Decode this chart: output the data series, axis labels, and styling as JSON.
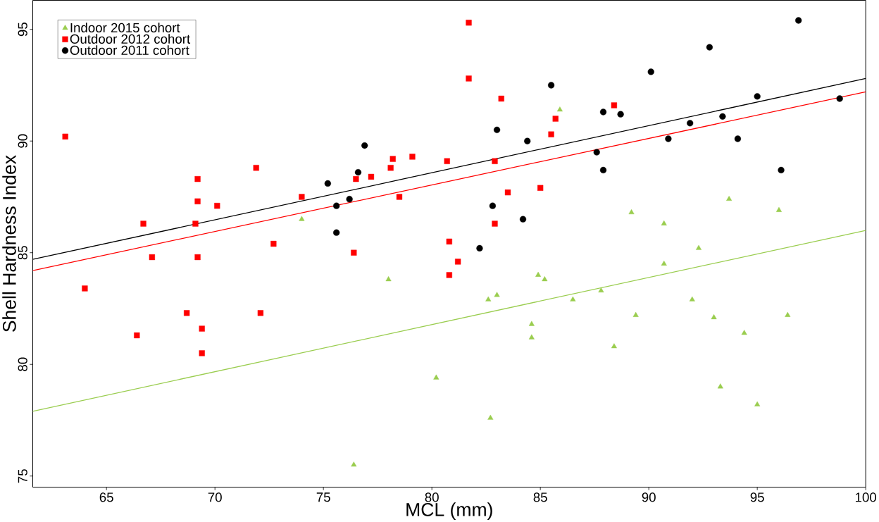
{
  "chart_data": {
    "type": "scatter",
    "xlabel": "MCL (mm)",
    "ylabel": "Shell Hardness Index",
    "xlim": [
      61.6,
      100
    ],
    "ylim": [
      74.5,
      96.3
    ],
    "xticks": [
      65,
      70,
      75,
      80,
      85,
      90,
      95,
      100
    ],
    "yticks": [
      75,
      80,
      85,
      90,
      95
    ],
    "grid": false,
    "legend": "top left",
    "series": [
      {
        "name": "Indoor 2015 cohort",
        "color": "#9acd4f",
        "marker": "triangle",
        "x": [
          74.0,
          78.0,
          80.2,
          76.4,
          82.6,
          83.0,
          82.7,
          84.6,
          84.6,
          84.9,
          85.2,
          85.9,
          86.5,
          87.8,
          88.4,
          89.2,
          89.4,
          90.7,
          90.7,
          92.0,
          92.3,
          93.0,
          93.3,
          93.7,
          94.4,
          95.0,
          96.0,
          96.4
        ],
        "values": [
          86.5,
          83.8,
          79.4,
          75.5,
          82.9,
          83.1,
          77.6,
          81.8,
          81.2,
          84.0,
          83.8,
          91.4,
          82.9,
          83.3,
          80.8,
          86.8,
          82.2,
          86.3,
          84.5,
          82.9,
          85.2,
          82.1,
          79.0,
          87.4,
          81.4,
          78.2,
          86.9,
          82.2
        ]
      },
      {
        "name": "Outdoor 2012 cohort",
        "color": "#ff0000",
        "marker": "square",
        "x": [
          63.1,
          64.0,
          66.7,
          66.4,
          67.1,
          68.7,
          69.2,
          69.2,
          69.1,
          69.2,
          69.4,
          69.4,
          70.1,
          71.9,
          72.7,
          72.1,
          74.0,
          76.5,
          76.4,
          77.2,
          78.1,
          78.2,
          79.1,
          78.5,
          80.7,
          80.8,
          80.8,
          81.2,
          81.7,
          81.7,
          83.2,
          82.9,
          82.9,
          83.5,
          85.0,
          85.5,
          85.7,
          88.4
        ],
        "values": [
          90.2,
          83.4,
          86.3,
          81.3,
          84.8,
          82.3,
          88.3,
          87.3,
          86.3,
          84.8,
          81.6,
          80.5,
          87.1,
          88.8,
          85.4,
          82.3,
          87.5,
          88.3,
          85.0,
          88.4,
          88.8,
          89.2,
          89.3,
          87.5,
          89.1,
          85.5,
          84.0,
          84.6,
          95.3,
          92.8,
          91.9,
          89.1,
          86.3,
          87.7,
          87.9,
          90.3,
          91.0,
          91.6
        ]
      },
      {
        "name": "Outdoor 2011 cohort",
        "color": "#000000",
        "marker": "circle",
        "x": [
          75.2,
          75.6,
          75.6,
          76.2,
          76.6,
          76.9,
          83.0,
          82.8,
          82.2,
          84.2,
          84.4,
          85.5,
          87.6,
          87.9,
          87.9,
          88.7,
          90.1,
          90.9,
          91.9,
          92.8,
          93.4,
          94.1,
          95.0,
          96.1,
          96.9,
          98.8
        ],
        "values": [
          88.1,
          87.1,
          85.9,
          87.4,
          88.6,
          89.8,
          90.5,
          87.1,
          85.2,
          86.5,
          90.0,
          92.5,
          89.5,
          91.3,
          88.7,
          91.2,
          93.1,
          90.1,
          90.8,
          94.2,
          91.1,
          90.1,
          92.0,
          88.7,
          95.4,
          91.9
        ]
      },
      {
        "type": "line",
        "color": "#9acd4f",
        "marker": "none",
        "x": [
          61.6,
          100
        ],
        "values": [
          77.9,
          86.0
        ]
      },
      {
        "type": "line",
        "color": "#ff0000",
        "marker": "none",
        "x": [
          61.6,
          100
        ],
        "values": [
          84.2,
          92.2
        ]
      },
      {
        "type": "line",
        "color": "#000000",
        "marker": "none",
        "x": [
          61.6,
          100
        ],
        "values": [
          84.7,
          92.8
        ]
      }
    ]
  }
}
